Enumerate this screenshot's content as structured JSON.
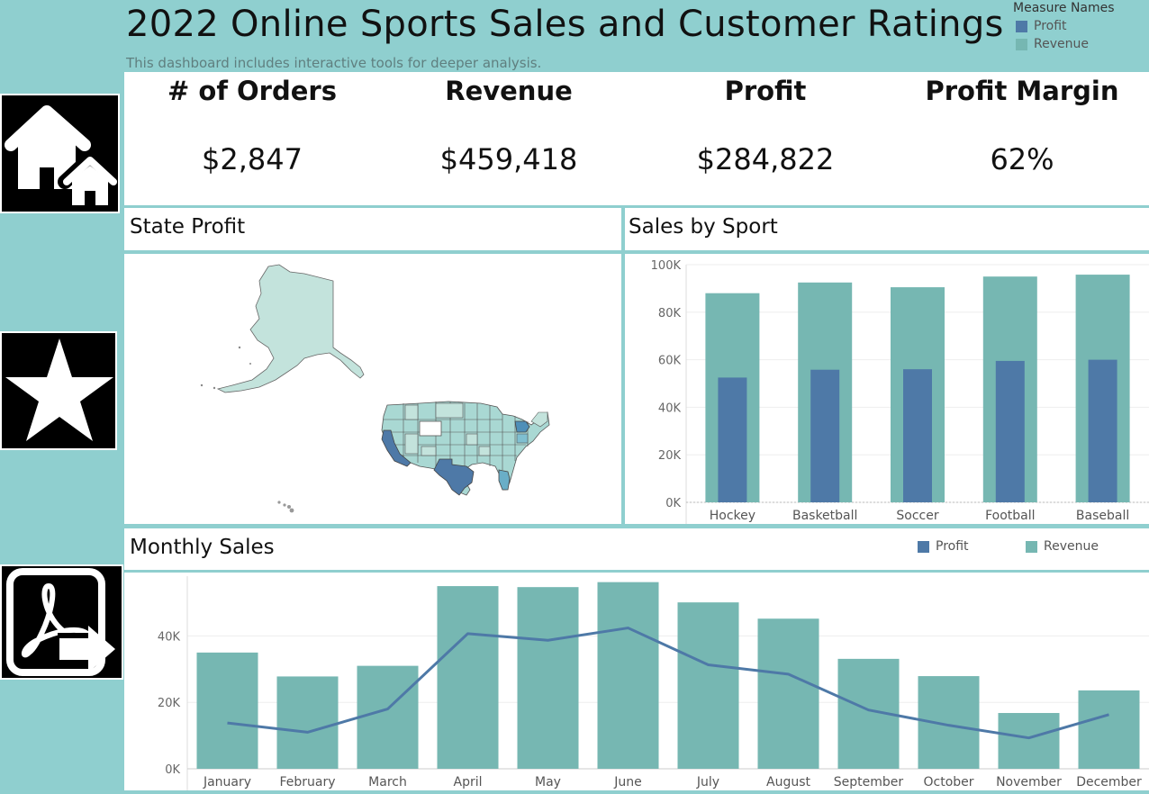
{
  "header": {
    "title": "2022 Online Sports Sales and Customer Ratings",
    "subtitle": "This dashboard includes interactive tools for deeper analysis."
  },
  "measure_legend": {
    "title": "Measure Names",
    "items": [
      {
        "label": "Profit",
        "color": "#4e79a7"
      },
      {
        "label": "Revenue",
        "color": "#76b7b2"
      }
    ]
  },
  "nav": [
    {
      "icon": "home-icon"
    },
    {
      "icon": "star-icon"
    },
    {
      "icon": "pdf-export-icon"
    }
  ],
  "kpis": [
    {
      "label": "# of Orders",
      "value": "$2,847"
    },
    {
      "label": "Revenue",
      "value": "$459,418"
    },
    {
      "label": "Profit",
      "value": "$284,822"
    },
    {
      "label": "Profit Margin",
      "value": "62%"
    }
  ],
  "state_profit": {
    "title": "State Profit"
  },
  "sales_by_sport": {
    "title": "Sales by Sport"
  },
  "monthly_sales": {
    "title": "Monthly Sales",
    "legend": [
      {
        "label": "Profit",
        "color": "#4e79a7"
      },
      {
        "label": "Revenue",
        "color": "#76b7b2"
      }
    ]
  },
  "chart_data": [
    {
      "type": "bar",
      "title": "Sales by Sport",
      "categories": [
        "Hockey",
        "Basketball",
        "Soccer",
        "Football",
        "Baseball"
      ],
      "series": [
        {
          "name": "Revenue",
          "values": [
            88000,
            92500,
            90500,
            95000,
            95800
          ],
          "color": "#76b7b2"
        },
        {
          "name": "Profit",
          "values": [
            52500,
            55800,
            56000,
            59500,
            60000
          ],
          "color": "#4e79a7"
        }
      ],
      "ylim": [
        0,
        100000
      ],
      "yticks": [
        "100K",
        "80K",
        "60K",
        "40K",
        "20K",
        "0K"
      ],
      "ytick_values": [
        100000,
        80000,
        60000,
        40000,
        20000,
        0
      ]
    },
    {
      "type": "bar",
      "title": "Monthly Sales",
      "categories": [
        "January",
        "February",
        "March",
        "April",
        "May",
        "June",
        "July",
        "August",
        "September",
        "October",
        "November",
        "December"
      ],
      "series": [
        {
          "name": "Revenue",
          "values": [
            35000,
            27800,
            31000,
            55000,
            54700,
            56200,
            50100,
            45200,
            33100,
            27900,
            16800,
            23600
          ],
          "color": "#76b7b2"
        },
        {
          "name": "Profit",
          "values": [
            13800,
            11000,
            18000,
            40700,
            38700,
            42400,
            31300,
            28500,
            17700,
            13100,
            9300,
            16300
          ],
          "color": "#4e79a7",
          "mark": "line"
        }
      ],
      "ylim": [
        0,
        58000
      ],
      "yticks": [
        "40K",
        "20K",
        "0K"
      ],
      "ytick_values": [
        40000,
        20000,
        0
      ]
    }
  ]
}
